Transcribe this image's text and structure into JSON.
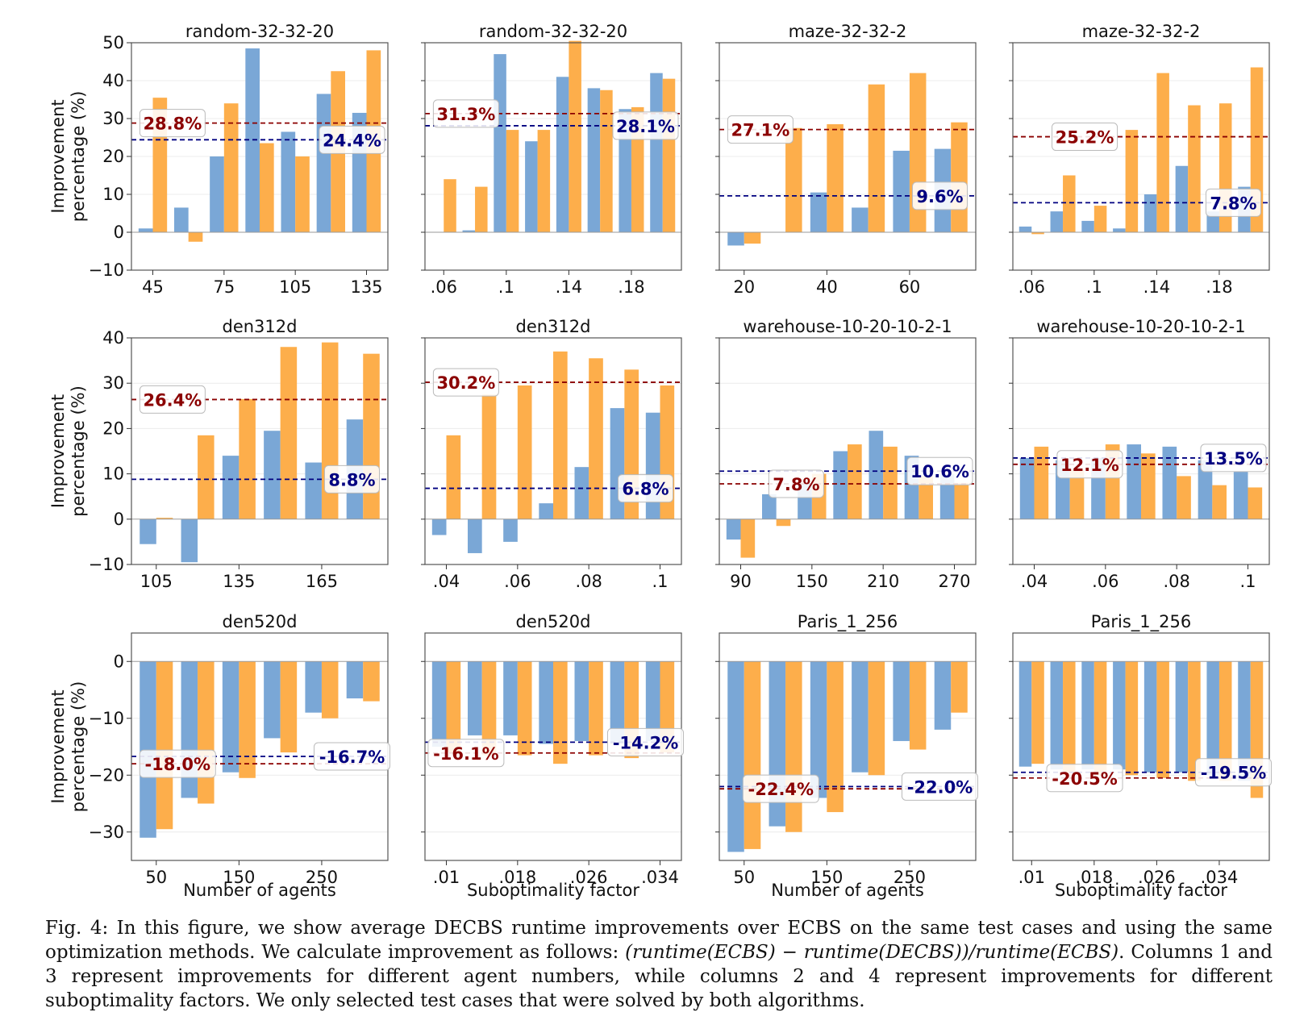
{
  "figure": {
    "caption": {
      "part1": "Fig. 4: In this figure, we show average DECBS runtime improvements over ECBS on the same test cases and using the same optimization methods. We calculate improvement as follows: ",
      "formula": "(runtime(ECBS) − runtime(DECBS))/runtime(ECBS)",
      "part2": ". Columns 1 and 3 represent improvements for different agent numbers, while columns 2 and 4 represent improvements for different suboptimality factors. We only selected test cases that were solved by both algorithms."
    },
    "colors": {
      "blue_bar": "#7aa7d6",
      "orange_bar": "#fdae4b",
      "red_line": "#8b0000",
      "blue_line": "#000080"
    },
    "row_ylabel": [
      "Improvement",
      "percentage (%)"
    ],
    "col_xlabels": [
      "Number of agents",
      "Suboptimality factor",
      "Number of agents",
      "Suboptimality factor"
    ]
  },
  "chart_data": [
    {
      "type": "bar",
      "title": "random-32-32-20",
      "ylim": [
        -10,
        50
      ],
      "yticks": [
        -10,
        0,
        10,
        20,
        30,
        40,
        50
      ],
      "xticks": [
        "45",
        "75",
        "105",
        "135"
      ],
      "xtick_pos": [
        0,
        2,
        4,
        6
      ],
      "series": [
        {
          "values": [
            1,
            6.5,
            20,
            48.5,
            26.5,
            36.5,
            31.5
          ]
        },
        {
          "values": [
            35.5,
            -2.5,
            34,
            23.5,
            20,
            42.5,
            48
          ]
        }
      ],
      "hlines": [
        {
          "value": 28.8,
          "label": "28.8%",
          "color": "red"
        },
        {
          "value": 24.4,
          "label": "24.4%",
          "color": "blue"
        }
      ]
    },
    {
      "type": "bar",
      "title": "random-32-32-20",
      "ylim": [
        -10,
        50
      ],
      "yticks": [],
      "xticks": [
        ".06",
        ".1",
        ".14",
        ".18"
      ],
      "xtick_pos": [
        0,
        2,
        4,
        6
      ],
      "series": [
        {
          "values": [
            0,
            0.5,
            47,
            24,
            41,
            38,
            32.5,
            42
          ]
        },
        {
          "values": [
            14,
            12,
            27,
            27,
            50.5,
            37.5,
            33,
            40.5
          ]
        }
      ],
      "hlines": [
        {
          "value": 31.3,
          "label": "31.3%",
          "color": "red"
        },
        {
          "value": 28.1,
          "label": "28.1%",
          "color": "blue"
        }
      ]
    },
    {
      "type": "bar",
      "title": "maze-32-32-2",
      "ylim": [
        -10,
        50
      ],
      "yticks": [],
      "xticks": [
        "20",
        "40",
        "60"
      ],
      "xtick_pos": [
        0,
        2,
        4
      ],
      "series": [
        {
          "values": [
            -3.5,
            0,
            10.5,
            6.5,
            21.5,
            22
          ]
        },
        {
          "values": [
            -3,
            27.5,
            28.5,
            39,
            42,
            29
          ]
        }
      ],
      "hlines": [
        {
          "value": 27.1,
          "label": "27.1%",
          "color": "red"
        },
        {
          "value": 9.6,
          "label": "9.6%",
          "color": "blue"
        }
      ]
    },
    {
      "type": "bar",
      "title": "maze-32-32-2",
      "ylim": [
        -10,
        50
      ],
      "yticks": [],
      "xticks": [
        ".06",
        ".1",
        ".14",
        ".18"
      ],
      "xtick_pos": [
        0,
        2,
        4,
        6
      ],
      "series": [
        {
          "values": [
            1.5,
            5.5,
            3,
            1,
            10,
            17.5,
            5.5,
            12
          ]
        },
        {
          "values": [
            -0.5,
            15,
            7,
            27,
            42,
            33.5,
            34,
            43.5
          ]
        }
      ],
      "hlines": [
        {
          "value": 25.2,
          "label": "25.2%",
          "color": "red"
        },
        {
          "value": 7.8,
          "label": "7.8%",
          "color": "blue"
        }
      ]
    },
    {
      "type": "bar",
      "title": "den312d",
      "ylim": [
        -10,
        40
      ],
      "yticks": [
        -10,
        0,
        10,
        20,
        30,
        40
      ],
      "xticks": [
        "105",
        "135",
        "165"
      ],
      "xtick_pos": [
        0,
        2,
        4
      ],
      "series": [
        {
          "values": [
            -5.5,
            -9.5,
            14,
            19.5,
            12.5,
            22
          ]
        },
        {
          "values": [
            0.3,
            18.5,
            26.5,
            38,
            39,
            36.5
          ]
        }
      ],
      "hlines": [
        {
          "value": 26.4,
          "label": "26.4%",
          "color": "red"
        },
        {
          "value": 8.8,
          "label": "8.8%",
          "color": "blue"
        }
      ]
    },
    {
      "type": "bar",
      "title": "den312d",
      "ylim": [
        -10,
        40
      ],
      "yticks": [],
      "xticks": [
        ".04",
        ".06",
        ".08",
        ".1"
      ],
      "xtick_pos": [
        0,
        2,
        4,
        6
      ],
      "series": [
        {
          "values": [
            -3.5,
            -7.5,
            -5,
            3.5,
            11.5,
            24.5,
            23.5
          ]
        },
        {
          "values": [
            18.5,
            27.5,
            29.5,
            37,
            35.5,
            33,
            29.5
          ]
        }
      ],
      "hlines": [
        {
          "value": 30.2,
          "label": "30.2%",
          "color": "red"
        },
        {
          "value": 6.8,
          "label": "6.8%",
          "color": "blue"
        }
      ]
    },
    {
      "type": "bar",
      "title": "warehouse-10-20-10-2-1",
      "ylim": [
        -10,
        40
      ],
      "yticks": [],
      "xticks": [
        "90",
        "150",
        "210",
        "270"
      ],
      "xtick_pos": [
        0,
        2,
        4,
        6
      ],
      "series": [
        {
          "values": [
            -4.5,
            5.5,
            8,
            15,
            19.5,
            14,
            10
          ]
        },
        {
          "values": [
            -8.5,
            -1.5,
            10,
            16.5,
            16,
            9.5,
            8
          ]
        }
      ],
      "hlines": [
        {
          "value": 7.8,
          "label": "7.8%",
          "color": "red"
        },
        {
          "value": 10.6,
          "label": "10.6%",
          "color": "blue"
        }
      ]
    },
    {
      "type": "bar",
      "title": "warehouse-10-20-10-2-1",
      "ylim": [
        -10,
        40
      ],
      "yticks": [],
      "xticks": [
        ".04",
        ".06",
        ".08",
        ".1"
      ],
      "xtick_pos": [
        0,
        2,
        4,
        6
      ],
      "series": [
        {
          "values": [
            13.5,
            13,
            13.5,
            16.5,
            16,
            13,
            10.5
          ]
        },
        {
          "values": [
            16,
            11,
            16.5,
            14.5,
            9.5,
            7.5,
            7
          ]
        }
      ],
      "hlines": [
        {
          "value": 12.1,
          "label": "12.1%",
          "color": "red"
        },
        {
          "value": 13.5,
          "label": "13.5%",
          "color": "blue"
        }
      ]
    },
    {
      "type": "bar",
      "title": "den520d",
      "ylim": [
        -35,
        5
      ],
      "yticks": [
        -30,
        -20,
        -10,
        0
      ],
      "xticks": [
        "50",
        "150",
        "250"
      ],
      "xtick_pos": [
        0,
        2,
        4
      ],
      "series": [
        {
          "values": [
            -31,
            -24,
            -19.5,
            -13.5,
            -9,
            -6.5
          ]
        },
        {
          "values": [
            -29.5,
            -25,
            -20.5,
            -16,
            -10,
            -7
          ]
        }
      ],
      "hlines": [
        {
          "value": -18.0,
          "label": "-18.0%",
          "color": "red"
        },
        {
          "value": -16.7,
          "label": "-16.7%",
          "color": "blue"
        }
      ]
    },
    {
      "type": "bar",
      "title": "den520d",
      "ylim": [
        -35,
        5
      ],
      "yticks": [],
      "xticks": [
        ".01",
        ".018",
        ".026",
        ".034"
      ],
      "xtick_pos": [
        0,
        2,
        4,
        6
      ],
      "series": [
        {
          "values": [
            -15,
            -13,
            -13,
            -14.5,
            -14,
            -14.5,
            -14
          ]
        },
        {
          "values": [
            -16,
            -16.5,
            -16.5,
            -18,
            -16.5,
            -17,
            -16
          ]
        }
      ],
      "hlines": [
        {
          "value": -16.1,
          "label": "-16.1%",
          "color": "red"
        },
        {
          "value": -14.2,
          "label": "-14.2%",
          "color": "blue"
        }
      ]
    },
    {
      "type": "bar",
      "title": "Paris_1_256",
      "ylim": [
        -35,
        5
      ],
      "yticks": [],
      "xticks": [
        "50",
        "150",
        "250"
      ],
      "xtick_pos": [
        0,
        2,
        4
      ],
      "series": [
        {
          "values": [
            -33.5,
            -29,
            -24,
            -19.5,
            -14,
            -12
          ]
        },
        {
          "values": [
            -33,
            -30,
            -26.5,
            -20,
            -15.5,
            -9
          ]
        }
      ],
      "hlines": [
        {
          "value": -22.4,
          "label": "-22.4%",
          "color": "red"
        },
        {
          "value": -22.0,
          "label": "-22.0%",
          "color": "blue"
        }
      ]
    },
    {
      "type": "bar",
      "title": "Paris_1_256",
      "ylim": [
        -35,
        5
      ],
      "yticks": [],
      "xticks": [
        ".01",
        ".018",
        ".026",
        ".034"
      ],
      "xtick_pos": [
        0,
        2,
        4,
        6
      ],
      "series": [
        {
          "values": [
            -18.5,
            -19,
            -19,
            -19,
            -19.5,
            -19.5,
            -20,
            -21
          ]
        },
        {
          "values": [
            -18,
            -19.5,
            -20,
            -20,
            -20.5,
            -21,
            -21,
            -24
          ]
        }
      ],
      "hlines": [
        {
          "value": -20.5,
          "label": "-20.5%",
          "color": "red"
        },
        {
          "value": -19.5,
          "label": "-19.5%",
          "color": "blue"
        }
      ]
    }
  ]
}
